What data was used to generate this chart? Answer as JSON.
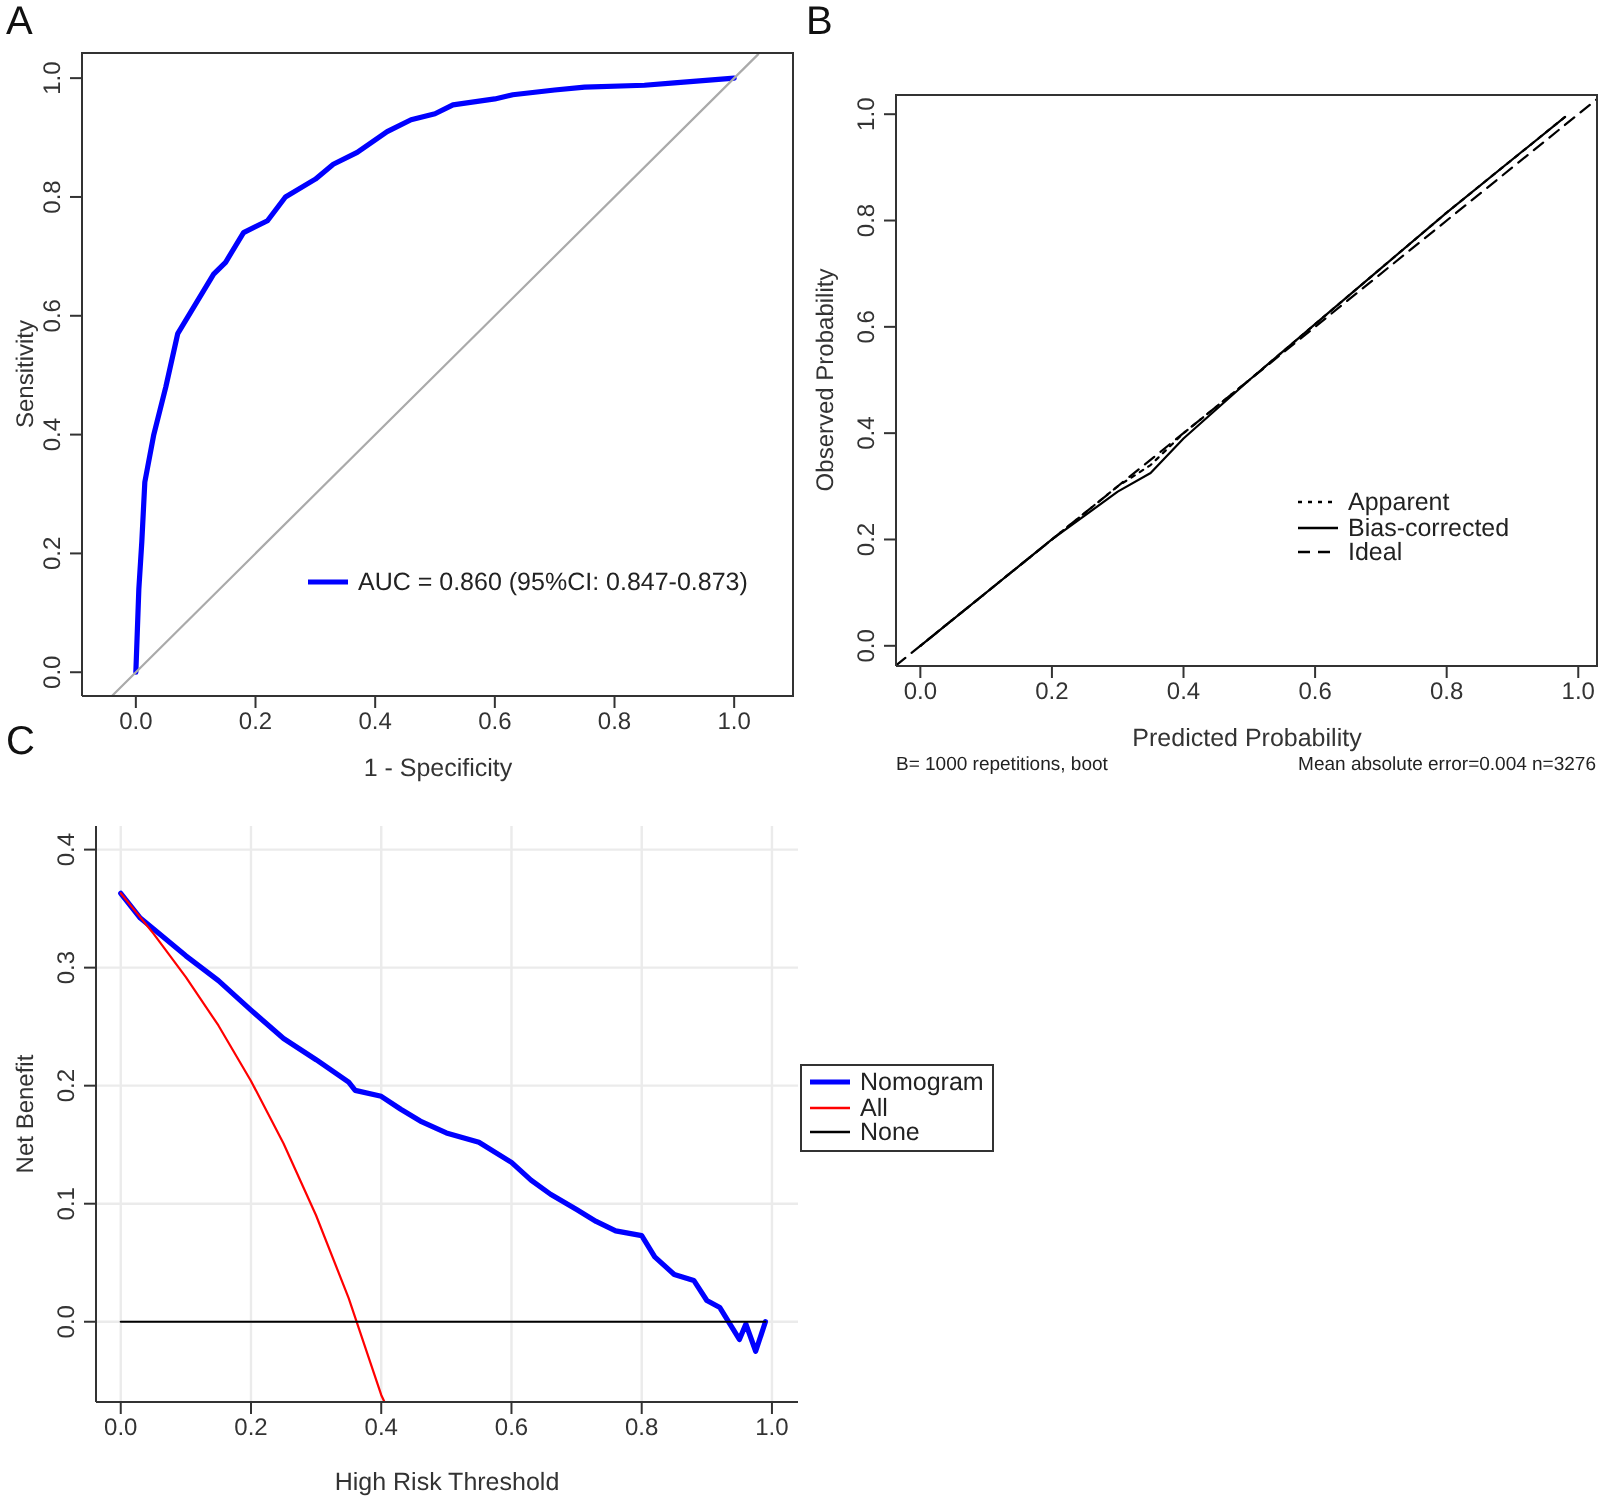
{
  "chart_data": [
    {
      "type": "line",
      "title": "A",
      "xlabel": "1 - Specificity",
      "ylabel": "Sensitivity",
      "xlim": [
        -0.09,
        1.1
      ],
      "ylim": [
        -0.04,
        1.044
      ],
      "xticks": [
        {
          "value": 0,
          "label": "0.0"
        },
        {
          "value": 0.2,
          "label": "0.2"
        },
        {
          "value": 0.4,
          "label": "0.4"
        },
        {
          "value": 0.6,
          "label": "0.6"
        },
        {
          "value": 0.8,
          "label": "0.8"
        },
        {
          "value": 1,
          "label": "1.0"
        }
      ],
      "yticks": [
        {
          "value": 0,
          "label": "0.0"
        },
        {
          "value": 0.2,
          "label": "0.2"
        },
        {
          "value": 0.4,
          "label": "0.4"
        },
        {
          "value": 0.6,
          "label": "0.6"
        },
        {
          "value": 0.8,
          "label": "0.8"
        },
        {
          "value": 1,
          "label": "1.0"
        }
      ],
      "legend": "bottom right",
      "series": [
        {
          "name": "AUC = 0.860 (95%CI: 0.847-0.873)",
          "color": "#0000ff",
          "x": [
            0,
            0.005,
            0.01,
            0.015,
            0.03,
            0.05,
            0.07,
            0.1,
            0.13,
            0.15,
            0.18,
            0.22,
            0.25,
            0.3,
            0.33,
            0.37,
            0.42,
            0.46,
            0.5,
            0.53,
            0.6,
            0.63,
            0.7,
            0.75,
            0.85,
            0.9,
            1.0
          ],
          "values": [
            0,
            0.14,
            0.22,
            0.32,
            0.4,
            0.48,
            0.57,
            0.62,
            0.67,
            0.69,
            0.74,
            0.76,
            0.8,
            0.83,
            0.855,
            0.875,
            0.91,
            0.93,
            0.94,
            0.955,
            0.965,
            0.972,
            0.98,
            0.985,
            0.988,
            0.992,
            1.0
          ]
        },
        {
          "color": "#aaaaaa",
          "x": [
            -0.04,
            1.04
          ],
          "values": [
            -0.04,
            1.04
          ]
        }
      ]
    },
    {
      "type": "line",
      "title": "B",
      "xlabel": "Predicted Probability",
      "ylabel": "Observed Probability",
      "xlim": [
        -0.037,
        1.03
      ],
      "ylim": [
        -0.038,
        1.038
      ],
      "xticks": [
        {
          "value": 0,
          "label": "0.0"
        },
        {
          "value": 0.2,
          "label": "0.2"
        },
        {
          "value": 0.4,
          "label": "0.4"
        },
        {
          "value": 0.6,
          "label": "0.6"
        },
        {
          "value": 0.8,
          "label": "0.8"
        },
        {
          "value": 1,
          "label": "1.0"
        }
      ],
      "yticks": [
        {
          "value": 0,
          "label": "0.0"
        },
        {
          "value": 0.2,
          "label": "0.2"
        },
        {
          "value": 0.4,
          "label": "0.4"
        },
        {
          "value": 0.6,
          "label": "0.6"
        },
        {
          "value": 0.8,
          "label": "0.8"
        },
        {
          "value": 1,
          "label": "1.0"
        }
      ],
      "legend": "bottom right",
      "annotations": [
        "B= 1000 repetitions, boot",
        "Mean absolute error=0.004 n=3276"
      ],
      "series": [
        {
          "name": "Apparent",
          "color": "#000000",
          "line_style": "dotted",
          "x": [
            0,
            0.2,
            0.3,
            0.35,
            0.4,
            0.5,
            0.6,
            0.7,
            0.8,
            0.98
          ],
          "values": [
            0,
            0.2,
            0.3,
            0.34,
            0.4,
            0.5,
            0.605,
            0.71,
            0.815,
            0.995
          ]
        },
        {
          "name": "Bias-corrected",
          "color": "#000000",
          "line_style": "solid",
          "x": [
            0,
            0.2,
            0.3,
            0.35,
            0.4,
            0.5,
            0.6,
            0.7,
            0.8,
            0.98
          ],
          "values": [
            0,
            0.2,
            0.29,
            0.325,
            0.39,
            0.5,
            0.605,
            0.71,
            0.815,
            0.995
          ]
        },
        {
          "name": "Ideal",
          "color": "#000000",
          "line_style": "dashed",
          "x": [
            -0.037,
            1.03
          ],
          "values": [
            -0.037,
            1.03
          ]
        }
      ]
    },
    {
      "type": "line",
      "title": "C",
      "xlabel": "High Risk Threshold",
      "ylabel": "Net Benefit",
      "xlim": [
        -0.038,
        1.04
      ],
      "ylim": [
        -0.068,
        0.42
      ],
      "grid": true,
      "xticks": [
        {
          "value": 0,
          "label": "0.0"
        },
        {
          "value": 0.2,
          "label": "0.2"
        },
        {
          "value": 0.4,
          "label": "0.4"
        },
        {
          "value": 0.6,
          "label": "0.6"
        },
        {
          "value": 0.8,
          "label": "0.8"
        },
        {
          "value": 1,
          "label": "1.0"
        }
      ],
      "yticks": [
        {
          "value": 0,
          "label": "0.0"
        },
        {
          "value": 0.1,
          "label": "0.1"
        },
        {
          "value": 0.2,
          "label": "0.2"
        },
        {
          "value": 0.3,
          "label": "0.3"
        },
        {
          "value": 0.4,
          "label": "0.4"
        }
      ],
      "legend": "right",
      "series": [
        {
          "name": "Nomogram",
          "color": "#0000ff",
          "x": [
            0,
            0.03,
            0.05,
            0.1,
            0.15,
            0.2,
            0.25,
            0.3,
            0.35,
            0.36,
            0.4,
            0.43,
            0.46,
            0.5,
            0.55,
            0.6,
            0.63,
            0.66,
            0.7,
            0.73,
            0.76,
            0.8,
            0.82,
            0.85,
            0.88,
            0.9,
            0.92,
            0.95,
            0.96,
            0.975,
            0.99
          ],
          "values": [
            0.363,
            0.342,
            0.333,
            0.31,
            0.289,
            0.264,
            0.24,
            0.222,
            0.203,
            0.196,
            0.191,
            0.18,
            0.17,
            0.16,
            0.152,
            0.135,
            0.12,
            0.108,
            0.095,
            0.085,
            0.077,
            0.073,
            0.055,
            0.04,
            0.035,
            0.018,
            0.012,
            -0.015,
            -0.002,
            -0.025,
            0.0
          ]
        },
        {
          "name": "All",
          "color": "#ff0000",
          "x": [
            0,
            0.05,
            0.1,
            0.15,
            0.2,
            0.25,
            0.3,
            0.35,
            0.4,
            0.405
          ],
          "values": [
            0.363,
            0.329,
            0.292,
            0.251,
            0.204,
            0.151,
            0.09,
            0.02,
            -0.062,
            -0.068
          ]
        },
        {
          "name": "None",
          "color": "#000000",
          "x": [
            0,
            0.99
          ],
          "values": [
            0,
            0
          ]
        }
      ]
    }
  ]
}
